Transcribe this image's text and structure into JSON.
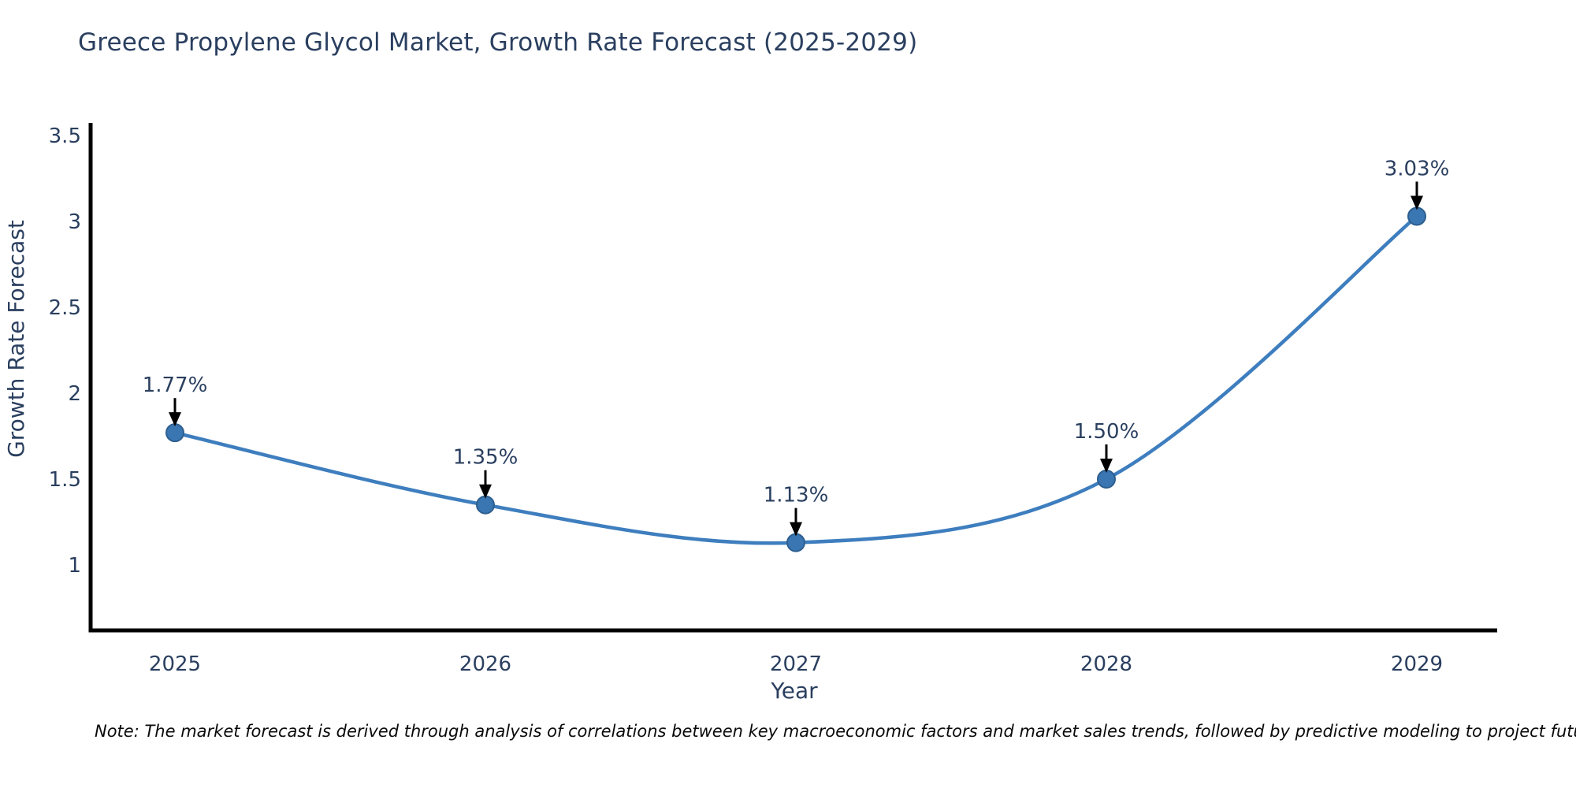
{
  "chart_data": {
    "type": "line",
    "title": "Greece Propylene Glycol Market, Growth Rate Forecast (2025-2029)",
    "xlabel": "Year",
    "ylabel": "Growth Rate Forecast",
    "x": [
      2025,
      2026,
      2027,
      2028,
      2029
    ],
    "values": [
      1.77,
      1.35,
      1.13,
      1.5,
      3.03
    ],
    "point_labels": [
      "1.77%",
      "1.35%",
      "1.13%",
      "1.50%",
      "3.03%"
    ],
    "x_tick_labels": [
      "2025",
      "2026",
      "2027",
      "2028",
      "2029"
    ],
    "y_tick_labels": [
      "1",
      "1.5",
      "2",
      "2.5",
      "3",
      "3.5"
    ],
    "y_tick_values": [
      1,
      1.5,
      2,
      2.5,
      3,
      3.5
    ],
    "ylim": [
      0.62,
      3.56
    ],
    "grid": false,
    "legend_position": "none",
    "curve": "spline",
    "colors": {
      "line": "#3e7ebe",
      "marker_fill": "#3a76b2",
      "marker_edge": "#2d5f8f",
      "axis": "#000000",
      "tick_text": "#2a3f5f",
      "annotation_text": "#2a3f5f",
      "arrow": "#000000",
      "title_text": "#2a3f5f",
      "note_text": "#0a0a0a"
    },
    "note": "Note: The market forecast is derived through analysis of correlations between key macroeconomic factors and market sales trends, followed by predictive modeling to project future sales"
  }
}
